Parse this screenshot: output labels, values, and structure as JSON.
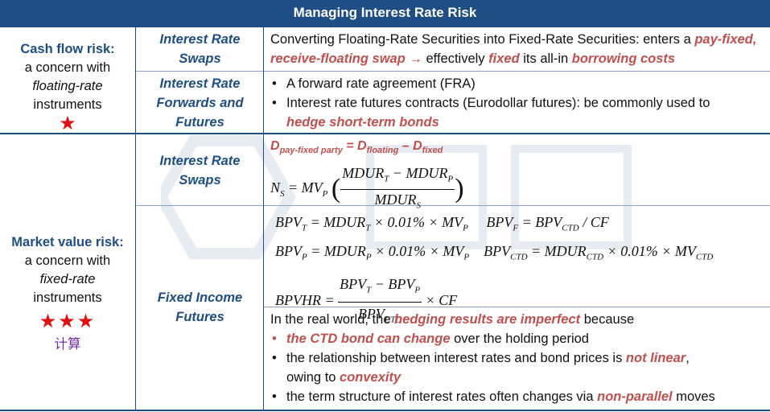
{
  "title": "Managing Interest Rate Risk",
  "cash_flow": {
    "title": "Cash flow risk:",
    "line1": "a concern with",
    "line2": "floating-rate",
    "line3": "instruments",
    "stars": "★"
  },
  "market_value": {
    "title": "Market value risk:",
    "line1": "a concern with",
    "line2": "fixed-rate",
    "line3": "instruments",
    "stars": "★★★",
    "note": "计算"
  },
  "swaps1": {
    "label_a": "Interest Rate",
    "label_b": "Swaps",
    "text_a": "Converting Floating-Rate Securities into Fixed-Rate Securities: enters a ",
    "hl_a": "pay-fixed, receive-floating swap",
    "arrow": " → ",
    "text_b": "effectively ",
    "hl_b": "fixed",
    "text_c": " its all-in ",
    "hl_c": "borrowing costs"
  },
  "forwards": {
    "label_a": "Interest Rate",
    "label_b": "Forwards and",
    "label_c": "Futures",
    "bullet1": "A forward rate agreement (FRA)",
    "bullet2": "Interest rate futures contracts (Eurodollar futures): be commonly used to",
    "bullet2_hl": "hedge short-term bonds"
  },
  "swaps2": {
    "label_a": "Interest Rate",
    "label_b": "Swaps",
    "d_main": "D",
    "d_sub1": "pay-fixed party",
    "d_eq": " = D",
    "d_sub2": "floating",
    "d_minus": " – D",
    "d_sub3": "fixed"
  },
  "futures": {
    "label_a": "Fixed Income",
    "label_b": "Futures",
    "intro": "In the real world, the ",
    "intro_hl": "hedging results are imperfect",
    "intro_end": " because",
    "b1_hl": "the CTD bond can change",
    "b1": " over the holding period",
    "b2": "the relationship between interest rates and bond prices is ",
    "b2_hl": "not linear",
    "b2_end": ",",
    "b2_cont": "owing to ",
    "b2_cont_hl": "convexity",
    "b3": "the term structure of interest rates often changes via ",
    "b3_hl": "non-parallel",
    "b3_end": " moves"
  }
}
